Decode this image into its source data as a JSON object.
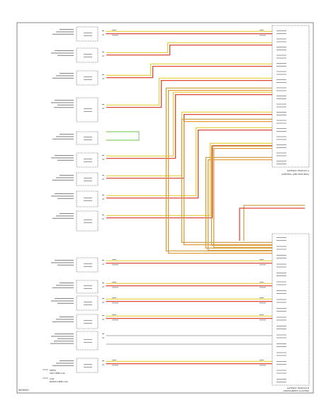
{
  "diagram": {
    "footer_code": "W00000",
    "colors": {
      "yellow": "#e6d44a",
      "red": "#e0463a",
      "green": "#6cc44a",
      "tan": "#c9a64a",
      "orange": "#e79a3c",
      "box": "#555555",
      "frame": "#666666"
    },
    "legend": [
      {
        "label": "MRHU",
        "sub": "HIGH SPEED CAN"
      },
      {
        "label": "CAN",
        "sub": "MEDIUM SPEED CAN"
      }
    ],
    "right_modules": [
      {
        "label": "GATEWAY MODULE A",
        "sub": "(CENTRAL JUNCTION BOX)"
      },
      {
        "label": "GATEWAY MODULE B",
        "sub": "(INSTRUMENT CLUSTER)"
      }
    ]
  }
}
